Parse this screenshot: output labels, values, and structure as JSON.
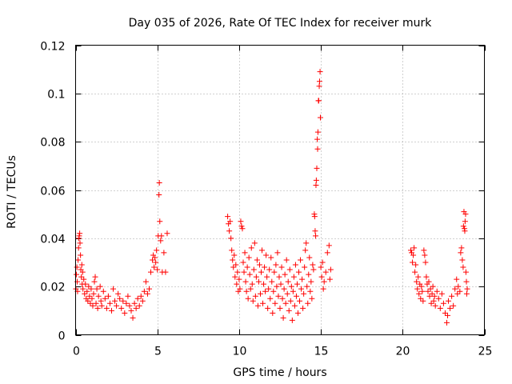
{
  "chart_data": {
    "type": "scatter",
    "title": "Day 035 of 2026, Rate Of TEC Index for receiver murk",
    "xlabel": "GPS time / hours",
    "ylabel": "ROTI / TECUs",
    "xlim": [
      0,
      25
    ],
    "ylim": [
      0,
      0.12
    ],
    "xticks": [
      0,
      5,
      10,
      15,
      20,
      25
    ],
    "xtick_labels": [
      "0",
      "5",
      "10",
      "15",
      "20",
      "25"
    ],
    "yticks": [
      0,
      0.02,
      0.04,
      0.06,
      0.08,
      0.1,
      0.12
    ],
    "ytick_labels": [
      "0",
      "0.02",
      "0.04",
      "0.06",
      "0.08",
      "0.1",
      "0.12"
    ],
    "grid": true,
    "marker": "+",
    "color": "#ff0000",
    "series": [
      {
        "name": "ROTI",
        "points": [
          [
            0.02,
            0.019
          ],
          [
            0.05,
            0.025
          ],
          [
            0.08,
            0.028
          ],
          [
            0.1,
            0.022
          ],
          [
            0.12,
            0.018
          ],
          [
            0.15,
            0.031
          ],
          [
            0.18,
            0.036
          ],
          [
            0.2,
            0.04
          ],
          [
            0.22,
            0.041
          ],
          [
            0.25,
            0.042
          ],
          [
            0.27,
            0.038
          ],
          [
            0.3,
            0.033
          ],
          [
            0.32,
            0.027
          ],
          [
            0.35,
            0.024
          ],
          [
            0.38,
            0.029
          ],
          [
            0.4,
            0.021
          ],
          [
            0.43,
            0.026
          ],
          [
            0.45,
            0.019
          ],
          [
            0.5,
            0.023
          ],
          [
            0.55,
            0.017
          ],
          [
            0.6,
            0.021
          ],
          [
            0.65,
            0.015
          ],
          [
            0.7,
            0.018
          ],
          [
            0.75,
            0.014
          ],
          [
            0.8,
            0.02
          ],
          [
            0.85,
            0.016
          ],
          [
            0.9,
            0.013
          ],
          [
            0.95,
            0.019
          ],
          [
            1.0,
            0.015
          ],
          [
            1.05,
            0.012
          ],
          [
            1.1,
            0.017
          ],
          [
            1.15,
            0.022
          ],
          [
            1.2,
            0.024
          ],
          [
            1.25,
            0.013
          ],
          [
            1.3,
            0.019
          ],
          [
            1.35,
            0.011
          ],
          [
            1.4,
            0.016
          ],
          [
            1.5,
            0.02
          ],
          [
            1.55,
            0.014
          ],
          [
            1.6,
            0.012
          ],
          [
            1.7,
            0.018
          ],
          [
            1.8,
            0.015
          ],
          [
            1.9,
            0.011
          ],
          [
            2.0,
            0.016
          ],
          [
            2.1,
            0.013
          ],
          [
            2.2,
            0.01
          ],
          [
            2.3,
            0.019
          ],
          [
            2.4,
            0.014
          ],
          [
            2.5,
            0.012
          ],
          [
            2.6,
            0.017
          ],
          [
            2.7,
            0.015
          ],
          [
            2.8,
            0.011
          ],
          [
            2.9,
            0.014
          ],
          [
            3.0,
            0.009
          ],
          [
            3.1,
            0.013
          ],
          [
            3.2,
            0.016
          ],
          [
            3.3,
            0.012
          ],
          [
            3.4,
            0.01
          ],
          [
            3.5,
            0.007
          ],
          [
            3.6,
            0.013
          ],
          [
            3.7,
            0.011
          ],
          [
            3.8,
            0.015
          ],
          [
            3.9,
            0.012
          ],
          [
            4.0,
            0.016
          ],
          [
            4.1,
            0.014
          ],
          [
            4.2,
            0.018
          ],
          [
            4.3,
            0.022
          ],
          [
            4.4,
            0.017
          ],
          [
            4.5,
            0.019
          ],
          [
            4.6,
            0.026
          ],
          [
            4.7,
            0.031
          ],
          [
            4.75,
            0.033
          ],
          [
            4.8,
            0.028
          ],
          [
            4.85,
            0.032
          ],
          [
            4.9,
            0.03
          ],
          [
            4.95,
            0.035
          ],
          [
            5.0,
            0.027
          ],
          [
            5.05,
            0.041
          ],
          [
            5.1,
            0.058
          ],
          [
            5.12,
            0.063
          ],
          [
            5.15,
            0.047
          ],
          [
            5.2,
            0.039
          ],
          [
            5.25,
            0.041
          ],
          [
            5.3,
            0.026
          ],
          [
            5.4,
            0.034
          ],
          [
            5.5,
            0.026
          ],
          [
            5.6,
            0.042
          ],
          [
            9.3,
            0.049
          ],
          [
            9.35,
            0.046
          ],
          [
            9.4,
            0.043
          ],
          [
            9.45,
            0.047
          ],
          [
            9.5,
            0.04
          ],
          [
            9.55,
            0.035
          ],
          [
            9.6,
            0.031
          ],
          [
            9.65,
            0.028
          ],
          [
            9.7,
            0.033
          ],
          [
            9.75,
            0.024
          ],
          [
            9.8,
            0.029
          ],
          [
            9.85,
            0.021
          ],
          [
            9.9,
            0.026
          ],
          [
            9.95,
            0.018
          ],
          [
            10.0,
            0.023
          ],
          [
            10.05,
            0.019
          ],
          [
            10.1,
            0.047
          ],
          [
            10.15,
            0.045
          ],
          [
            10.2,
            0.044
          ],
          [
            10.25,
            0.03
          ],
          [
            10.3,
            0.026
          ],
          [
            10.35,
            0.034
          ],
          [
            10.4,
            0.022
          ],
          [
            10.45,
            0.018
          ],
          [
            10.5,
            0.028
          ],
          [
            10.55,
            0.015
          ],
          [
            10.6,
            0.032
          ],
          [
            10.65,
            0.025
          ],
          [
            10.7,
            0.019
          ],
          [
            10.75,
            0.036
          ],
          [
            10.8,
            0.021
          ],
          [
            10.85,
            0.014
          ],
          [
            10.9,
            0.027
          ],
          [
            10.95,
            0.038
          ],
          [
            11.0,
            0.016
          ],
          [
            11.05,
            0.024
          ],
          [
            11.1,
            0.031
          ],
          [
            11.15,
            0.012
          ],
          [
            11.2,
            0.022
          ],
          [
            11.25,
            0.029
          ],
          [
            11.3,
            0.017
          ],
          [
            11.35,
            0.026
          ],
          [
            11.4,
            0.035
          ],
          [
            11.45,
            0.013
          ],
          [
            11.5,
            0.021
          ],
          [
            11.55,
            0.028
          ],
          [
            11.6,
            0.018
          ],
          [
            11.65,
            0.033
          ],
          [
            11.7,
            0.024
          ],
          [
            11.75,
            0.011
          ],
          [
            11.8,
            0.019
          ],
          [
            11.85,
            0.027
          ],
          [
            11.9,
            0.015
          ],
          [
            11.95,
            0.032
          ],
          [
            12.0,
            0.022
          ],
          [
            12.05,
            0.009
          ],
          [
            12.1,
            0.018
          ],
          [
            12.15,
            0.026
          ],
          [
            12.2,
            0.013
          ],
          [
            12.25,
            0.029
          ],
          [
            12.3,
            0.02
          ],
          [
            12.35,
            0.034
          ],
          [
            12.4,
            0.016
          ],
          [
            12.45,
            0.024
          ],
          [
            12.5,
            0.011
          ],
          [
            12.55,
            0.021
          ],
          [
            12.6,
            0.028
          ],
          [
            12.65,
            0.015
          ],
          [
            12.7,
            0.007
          ],
          [
            12.75,
            0.019
          ],
          [
            12.8,
            0.025
          ],
          [
            12.85,
            0.013
          ],
          [
            12.9,
            0.031
          ],
          [
            12.95,
            0.017
          ],
          [
            13.0,
            0.022
          ],
          [
            13.05,
            0.01
          ],
          [
            13.1,
            0.027
          ],
          [
            13.15,
            0.014
          ],
          [
            13.2,
            0.02
          ],
          [
            13.25,
            0.006
          ],
          [
            13.3,
            0.018
          ],
          [
            13.35,
            0.024
          ],
          [
            13.4,
            0.012
          ],
          [
            13.45,
            0.029
          ],
          [
            13.5,
            0.016
          ],
          [
            13.55,
            0.021
          ],
          [
            13.6,
            0.009
          ],
          [
            13.65,
            0.026
          ],
          [
            13.7,
            0.014
          ],
          [
            13.75,
            0.031
          ],
          [
            13.8,
            0.019
          ],
          [
            13.85,
            0.023
          ],
          [
            13.9,
            0.011
          ],
          [
            13.95,
            0.017
          ],
          [
            14.0,
            0.028
          ],
          [
            14.05,
            0.035
          ],
          [
            14.1,
            0.038
          ],
          [
            14.15,
            0.02
          ],
          [
            14.2,
            0.013
          ],
          [
            14.25,
            0.025
          ],
          [
            14.3,
            0.032
          ],
          [
            14.35,
            0.018
          ],
          [
            14.4,
            0.022
          ],
          [
            14.45,
            0.015
          ],
          [
            14.5,
            0.029
          ],
          [
            14.55,
            0.027
          ],
          [
            14.6,
            0.05
          ],
          [
            14.62,
            0.049
          ],
          [
            14.65,
            0.043
          ],
          [
            14.68,
            0.041
          ],
          [
            14.7,
            0.062
          ],
          [
            14.72,
            0.064
          ],
          [
            14.75,
            0.069
          ],
          [
            14.78,
            0.081
          ],
          [
            14.8,
            0.077
          ],
          [
            14.82,
            0.084
          ],
          [
            14.85,
            0.097
          ],
          [
            14.87,
            0.097
          ],
          [
            14.9,
            0.103
          ],
          [
            14.92,
            0.105
          ],
          [
            14.95,
            0.109
          ],
          [
            14.97,
            0.09
          ],
          [
            15.0,
            0.028
          ],
          [
            15.05,
            0.024
          ],
          [
            15.1,
            0.03
          ],
          [
            15.15,
            0.019
          ],
          [
            15.2,
            0.022
          ],
          [
            15.3,
            0.026
          ],
          [
            15.4,
            0.034
          ],
          [
            15.5,
            0.037
          ],
          [
            15.55,
            0.023
          ],
          [
            15.6,
            0.027
          ],
          [
            20.5,
            0.035
          ],
          [
            20.55,
            0.034
          ],
          [
            20.6,
            0.03
          ],
          [
            20.65,
            0.033
          ],
          [
            20.7,
            0.036
          ],
          [
            20.75,
            0.026
          ],
          [
            20.8,
            0.029
          ],
          [
            20.85,
            0.022
          ],
          [
            20.9,
            0.019
          ],
          [
            20.95,
            0.024
          ],
          [
            21.0,
            0.017
          ],
          [
            21.05,
            0.021
          ],
          [
            21.1,
            0.015
          ],
          [
            21.15,
            0.02
          ],
          [
            21.2,
            0.018
          ],
          [
            21.25,
            0.014
          ],
          [
            21.3,
            0.035
          ],
          [
            21.35,
            0.033
          ],
          [
            21.4,
            0.03
          ],
          [
            21.45,
            0.024
          ],
          [
            21.5,
            0.021
          ],
          [
            21.55,
            0.018
          ],
          [
            21.6,
            0.022
          ],
          [
            21.65,
            0.016
          ],
          [
            21.7,
            0.019
          ],
          [
            21.75,
            0.013
          ],
          [
            21.8,
            0.017
          ],
          [
            21.85,
            0.02
          ],
          [
            21.9,
            0.014
          ],
          [
            21.95,
            0.016
          ],
          [
            22.0,
            0.012
          ],
          [
            22.1,
            0.018
          ],
          [
            22.2,
            0.015
          ],
          [
            22.3,
            0.011
          ],
          [
            22.4,
            0.017
          ],
          [
            22.5,
            0.013
          ],
          [
            22.6,
            0.009
          ],
          [
            22.7,
            0.005
          ],
          [
            22.75,
            0.008
          ],
          [
            22.8,
            0.014
          ],
          [
            22.9,
            0.011
          ],
          [
            23.0,
            0.016
          ],
          [
            23.1,
            0.012
          ],
          [
            23.2,
            0.019
          ],
          [
            23.3,
            0.023
          ],
          [
            23.35,
            0.017
          ],
          [
            23.4,
            0.02
          ],
          [
            23.5,
            0.018
          ],
          [
            23.55,
            0.034
          ],
          [
            23.6,
            0.036
          ],
          [
            23.65,
            0.031
          ],
          [
            23.7,
            0.028
          ],
          [
            23.72,
            0.045
          ],
          [
            23.75,
            0.051
          ],
          [
            23.78,
            0.044
          ],
          [
            23.8,
            0.043
          ],
          [
            23.82,
            0.047
          ],
          [
            23.85,
            0.05
          ],
          [
            23.87,
            0.026
          ],
          [
            23.9,
            0.022
          ],
          [
            23.92,
            0.017
          ],
          [
            23.95,
            0.019
          ]
        ]
      }
    ]
  }
}
